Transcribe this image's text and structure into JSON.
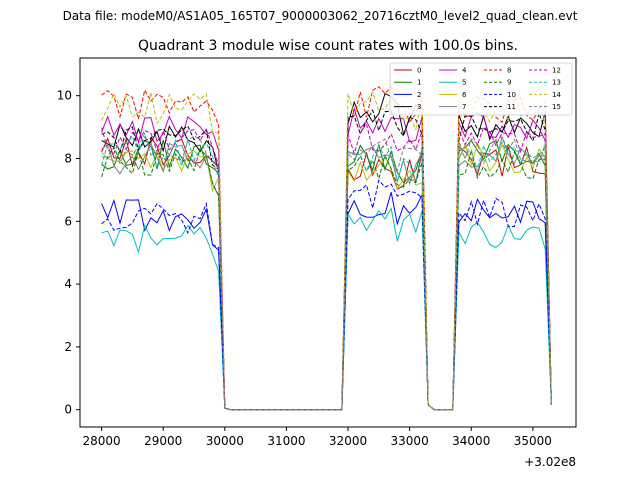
{
  "suptitle": "Data file: modeM0/AS1A05_165T07_9000003062_20716cztM0_level2_quad_clean.evt",
  "chart_data": {
    "type": "line",
    "title": "Quadrant 3 module wise count rates with 100.0s bins.",
    "xlabel": "",
    "ylabel": "",
    "x_offset_label": "+3.02e8",
    "xlim": [
      27650,
      35700
    ],
    "ylim": [
      -0.55,
      11.2
    ],
    "xticks": [
      28000,
      29000,
      30000,
      31000,
      32000,
      33000,
      34000,
      35000
    ],
    "xtick_labels": [
      "28000",
      "29000",
      "30000",
      "31000",
      "32000",
      "33000",
      "34000",
      "35000"
    ],
    "yticks": [
      0,
      2,
      4,
      6,
      8,
      10
    ],
    "ytick_labels": [
      "0",
      "2",
      "4",
      "6",
      "8",
      "10"
    ],
    "legend_position": "top-right",
    "segments": [
      {
        "start": 28000,
        "end": 30000,
        "step": 100
      },
      {
        "start": 32000,
        "end": 33300,
        "step": 100
      },
      {
        "start": 33800,
        "end": 35300,
        "step": 100
      }
    ],
    "series": [
      {
        "name": "0",
        "color": "#cc0000",
        "dash": "solid",
        "levels": [
          8.2,
          7.8,
          7.9
        ]
      },
      {
        "name": "1",
        "color": "#008000",
        "dash": "solid",
        "levels": [
          8.1,
          8.0,
          8.1
        ]
      },
      {
        "name": "2",
        "color": "#0000ff",
        "dash": "solid",
        "levels": [
          6.2,
          6.5,
          6.2
        ]
      },
      {
        "name": "3",
        "color": "#000000",
        "dash": "solid",
        "levels": [
          8.7,
          9.6,
          9.1
        ]
      },
      {
        "name": "4",
        "color": "#bf00bf",
        "dash": "solid",
        "levels": [
          9.0,
          9.2,
          9.0
        ]
      },
      {
        "name": "5",
        "color": "#00bfbf",
        "dash": "solid",
        "levels": [
          5.4,
          6.0,
          5.5
        ]
      },
      {
        "name": "6",
        "color": "#bfbf00",
        "dash": "solid",
        "levels": [
          7.9,
          7.7,
          8.0
        ]
      },
      {
        "name": "7",
        "color": "#7f7f7f",
        "dash": "solid",
        "levels": [
          8.0,
          7.9,
          8.2
        ]
      },
      {
        "name": "8",
        "color": "#ff0000",
        "dash": "dashed",
        "levels": [
          9.7,
          9.8,
          9.5
        ]
      },
      {
        "name": "9",
        "color": "#008000",
        "dash": "dashed",
        "levels": [
          7.9,
          7.8,
          7.8
        ]
      },
      {
        "name": "10",
        "color": "#0000ff",
        "dash": "dashed",
        "levels": [
          6.1,
          6.9,
          6.3
        ]
      },
      {
        "name": "11",
        "color": "#000000",
        "dash": "dashed",
        "levels": [
          8.6,
          9.2,
          9.0
        ]
      },
      {
        "name": "12",
        "color": "#bf00bf",
        "dash": "dashed",
        "levels": [
          8.5,
          8.6,
          8.7
        ]
      },
      {
        "name": "13",
        "color": "#00bfbf",
        "dash": "dashed",
        "levels": [
          8.2,
          8.0,
          8.1
        ]
      },
      {
        "name": "14",
        "color": "#bfbf00",
        "dash": "dashed",
        "levels": [
          9.6,
          9.7,
          9.6
        ]
      },
      {
        "name": "15",
        "color": "#7f7f7f",
        "dash": "dashed",
        "levels": [
          8.3,
          8.4,
          8.3
        ]
      }
    ]
  }
}
